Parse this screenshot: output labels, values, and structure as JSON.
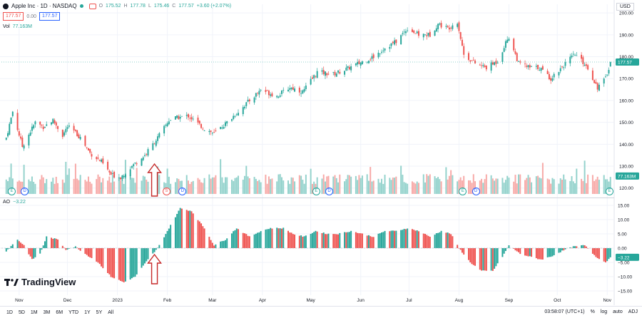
{
  "header": {
    "symbol": "Apple Inc · 1D · NASDAQ",
    "ohlc": {
      "o_label": "O",
      "o": "175.52",
      "h_label": "H",
      "h": "177.78",
      "l_label": "L",
      "l": "175.46",
      "c_label": "C",
      "c": "177.57",
      "chg": "+3.60 (+2.07%)"
    },
    "sell_price": "177.57",
    "spread": "0.00",
    "buy_price": "177.57",
    "vol_label": "Vol",
    "vol_value": "77.163M",
    "ao_label": "AO",
    "ao_value": "−3.22"
  },
  "currency": "USD",
  "price_tag": "177.57",
  "volume_tag": "77.163M",
  "ao_tag": "−3.22",
  "logo_text": "TradingView",
  "timeframes": [
    "1D",
    "5D",
    "1M",
    "3M",
    "6M",
    "YTD",
    "1Y",
    "5Y",
    "All"
  ],
  "status": {
    "time": "03:58:07 (UTC+1)",
    "pct": "%",
    "log": "log",
    "auto": "auto",
    "adj": "ADJ"
  },
  "colors": {
    "up": "#26a69a",
    "down": "#ef5350",
    "vol_up": "#93d2cc",
    "vol_down": "#f7a9a7",
    "arrow": "#c62828",
    "price_line": "#26a69a"
  },
  "event_icons": [
    {
      "letter": "E",
      "date": "2022-10-27",
      "color": "#26a69a"
    },
    {
      "letter": "D",
      "date": "2022-11-04",
      "color": "#2962ff"
    },
    {
      "letter": "S",
      "date": "2023-01-31",
      "color": "#ef5350"
    },
    {
      "letter": "D",
      "date": "2023-02-10",
      "color": "#2962ff"
    },
    {
      "letter": "E",
      "date": "2023-05-04",
      "color": "#26a69a"
    },
    {
      "letter": "D",
      "date": "2023-05-12",
      "color": "#2962ff"
    },
    {
      "letter": "E",
      "date": "2023-08-03",
      "color": "#26a69a"
    },
    {
      "letter": "D",
      "date": "2023-08-11",
      "color": "#2962ff"
    },
    {
      "letter": "E",
      "date": "2023-11-02",
      "color": "#26a69a"
    }
  ],
  "chart_data": [
    {
      "type": "candlestick",
      "title": "Apple Inc · 1D · NASDAQ",
      "x_ticks": [
        "Nov",
        "Dec",
        "2023",
        "Feb",
        "Mar",
        "Apr",
        "May",
        "Jun",
        "Jul",
        "Aug",
        "Sep",
        "Oct",
        "Nov"
      ],
      "y_ticks": [
        120,
        130,
        140,
        150,
        160,
        170,
        180,
        190,
        200
      ],
      "ylim": [
        116,
        202
      ],
      "last_close": 177.57,
      "anchors_close": [
        [
          "2022-10-24",
          143
        ],
        [
          "2022-10-28",
          155
        ],
        [
          "2022-11-03",
          139
        ],
        [
          "2022-11-11",
          150
        ],
        [
          "2022-11-16",
          148
        ],
        [
          "2022-11-22",
          151
        ],
        [
          "2022-11-28",
          144
        ],
        [
          "2022-12-01",
          148
        ],
        [
          "2022-12-05",
          146
        ],
        [
          "2022-12-09",
          143
        ],
        [
          "2022-12-15",
          136
        ],
        [
          "2022-12-22",
          132
        ],
        [
          "2022-12-28",
          126
        ],
        [
          "2023-01-03",
          125
        ],
        [
          "2023-01-10",
          130
        ],
        [
          "2023-01-18",
          135
        ],
        [
          "2023-01-26",
          143
        ],
        [
          "2023-02-02",
          151
        ],
        [
          "2023-02-06",
          152
        ],
        [
          "2023-02-14",
          153
        ],
        [
          "2023-02-24",
          147
        ],
        [
          "2023-03-02",
          145
        ],
        [
          "2023-03-10",
          150
        ],
        [
          "2023-03-17",
          155
        ],
        [
          "2023-03-24",
          160
        ],
        [
          "2023-03-31",
          165
        ],
        [
          "2023-04-10",
          162
        ],
        [
          "2023-04-18",
          166
        ],
        [
          "2023-04-26",
          164
        ],
        [
          "2023-05-05",
          173
        ],
        [
          "2023-05-15",
          172
        ],
        [
          "2023-05-22",
          174
        ],
        [
          "2023-05-31",
          177
        ],
        [
          "2023-06-09",
          180
        ],
        [
          "2023-06-16",
          184
        ],
        [
          "2023-06-23",
          187
        ],
        [
          "2023-06-30",
          193
        ],
        [
          "2023-07-07",
          190
        ],
        [
          "2023-07-14",
          190
        ],
        [
          "2023-07-19",
          195
        ],
        [
          "2023-07-25",
          193
        ],
        [
          "2023-07-31",
          196
        ],
        [
          "2023-08-04",
          181
        ],
        [
          "2023-08-11",
          177
        ],
        [
          "2023-08-18",
          175
        ],
        [
          "2023-08-25",
          178
        ],
        [
          "2023-08-31",
          188
        ],
        [
          "2023-09-01",
          189
        ],
        [
          "2023-09-07",
          177
        ],
        [
          "2023-09-14",
          175
        ],
        [
          "2023-09-20",
          175
        ],
        [
          "2023-09-27",
          170
        ],
        [
          "2023-10-06",
          177
        ],
        [
          "2023-10-12",
          181
        ],
        [
          "2023-10-19",
          176
        ],
        [
          "2023-10-26",
          166
        ],
        [
          "2023-10-31",
          170
        ],
        [
          "2023-11-03",
          177.57
        ]
      ],
      "ohlc_last": {
        "open": 175.52,
        "high": 177.78,
        "low": 175.46,
        "close": 177.57
      }
    },
    {
      "type": "bar",
      "title": "Vol",
      "last_value": "77.163M",
      "note": "daily volume histogram"
    },
    {
      "type": "bar",
      "title": "AO",
      "y_ticks": [
        -15,
        -10,
        -5,
        0,
        5,
        10,
        15
      ],
      "ylim": [
        -15.5,
        15.5
      ],
      "last_value": -3.22,
      "anchors": [
        [
          "2022-10-24",
          -1
        ],
        [
          "2022-10-31",
          3
        ],
        [
          "2022-11-04",
          1
        ],
        [
          "2022-11-09",
          -4
        ],
        [
          "2022-11-14",
          -2
        ],
        [
          "2022-11-18",
          4
        ],
        [
          "2022-11-25",
          3
        ],
        [
          "2022-11-30",
          -0.5
        ],
        [
          "2022-12-06",
          0.5
        ],
        [
          "2022-12-12",
          -2
        ],
        [
          "2022-12-20",
          -5
        ],
        [
          "2022-12-28",
          -10
        ],
        [
          "2023-01-05",
          -12
        ],
        [
          "2023-01-12",
          -10
        ],
        [
          "2023-01-20",
          -4
        ],
        [
          "2023-01-26",
          0
        ],
        [
          "2023-02-02",
          7
        ],
        [
          "2023-02-09",
          14
        ],
        [
          "2023-02-16",
          13
        ],
        [
          "2023-02-24",
          7
        ],
        [
          "2023-03-02",
          1
        ],
        [
          "2023-03-09",
          3
        ],
        [
          "2023-03-16",
          7
        ],
        [
          "2023-03-24",
          4
        ],
        [
          "2023-03-31",
          6
        ],
        [
          "2023-04-06",
          7
        ],
        [
          "2023-04-14",
          7
        ],
        [
          "2023-04-20",
          5
        ],
        [
          "2023-04-27",
          4
        ],
        [
          "2023-05-04",
          6
        ],
        [
          "2023-05-11",
          5
        ],
        [
          "2023-05-18",
          5
        ],
        [
          "2023-05-26",
          6
        ],
        [
          "2023-06-02",
          5
        ],
        [
          "2023-06-09",
          4
        ],
        [
          "2023-06-16",
          6
        ],
        [
          "2023-06-23",
          6
        ],
        [
          "2023-06-30",
          7
        ],
        [
          "2023-07-07",
          6
        ],
        [
          "2023-07-14",
          4
        ],
        [
          "2023-07-21",
          6
        ],
        [
          "2023-07-27",
          5
        ],
        [
          "2023-08-01",
          0
        ],
        [
          "2023-08-08",
          -5
        ],
        [
          "2023-08-15",
          -8
        ],
        [
          "2023-08-22",
          -8
        ],
        [
          "2023-08-28",
          -3
        ],
        [
          "2023-09-01",
          1
        ],
        [
          "2023-09-08",
          -2
        ],
        [
          "2023-09-14",
          -3
        ],
        [
          "2023-09-21",
          -4
        ],
        [
          "2023-09-27",
          -3
        ],
        [
          "2023-10-04",
          -1
        ],
        [
          "2023-10-11",
          0.5
        ],
        [
          "2023-10-18",
          1
        ],
        [
          "2023-10-25",
          -3
        ],
        [
          "2023-10-31",
          -5
        ],
        [
          "2023-11-03",
          -3.22
        ]
      ]
    }
  ]
}
